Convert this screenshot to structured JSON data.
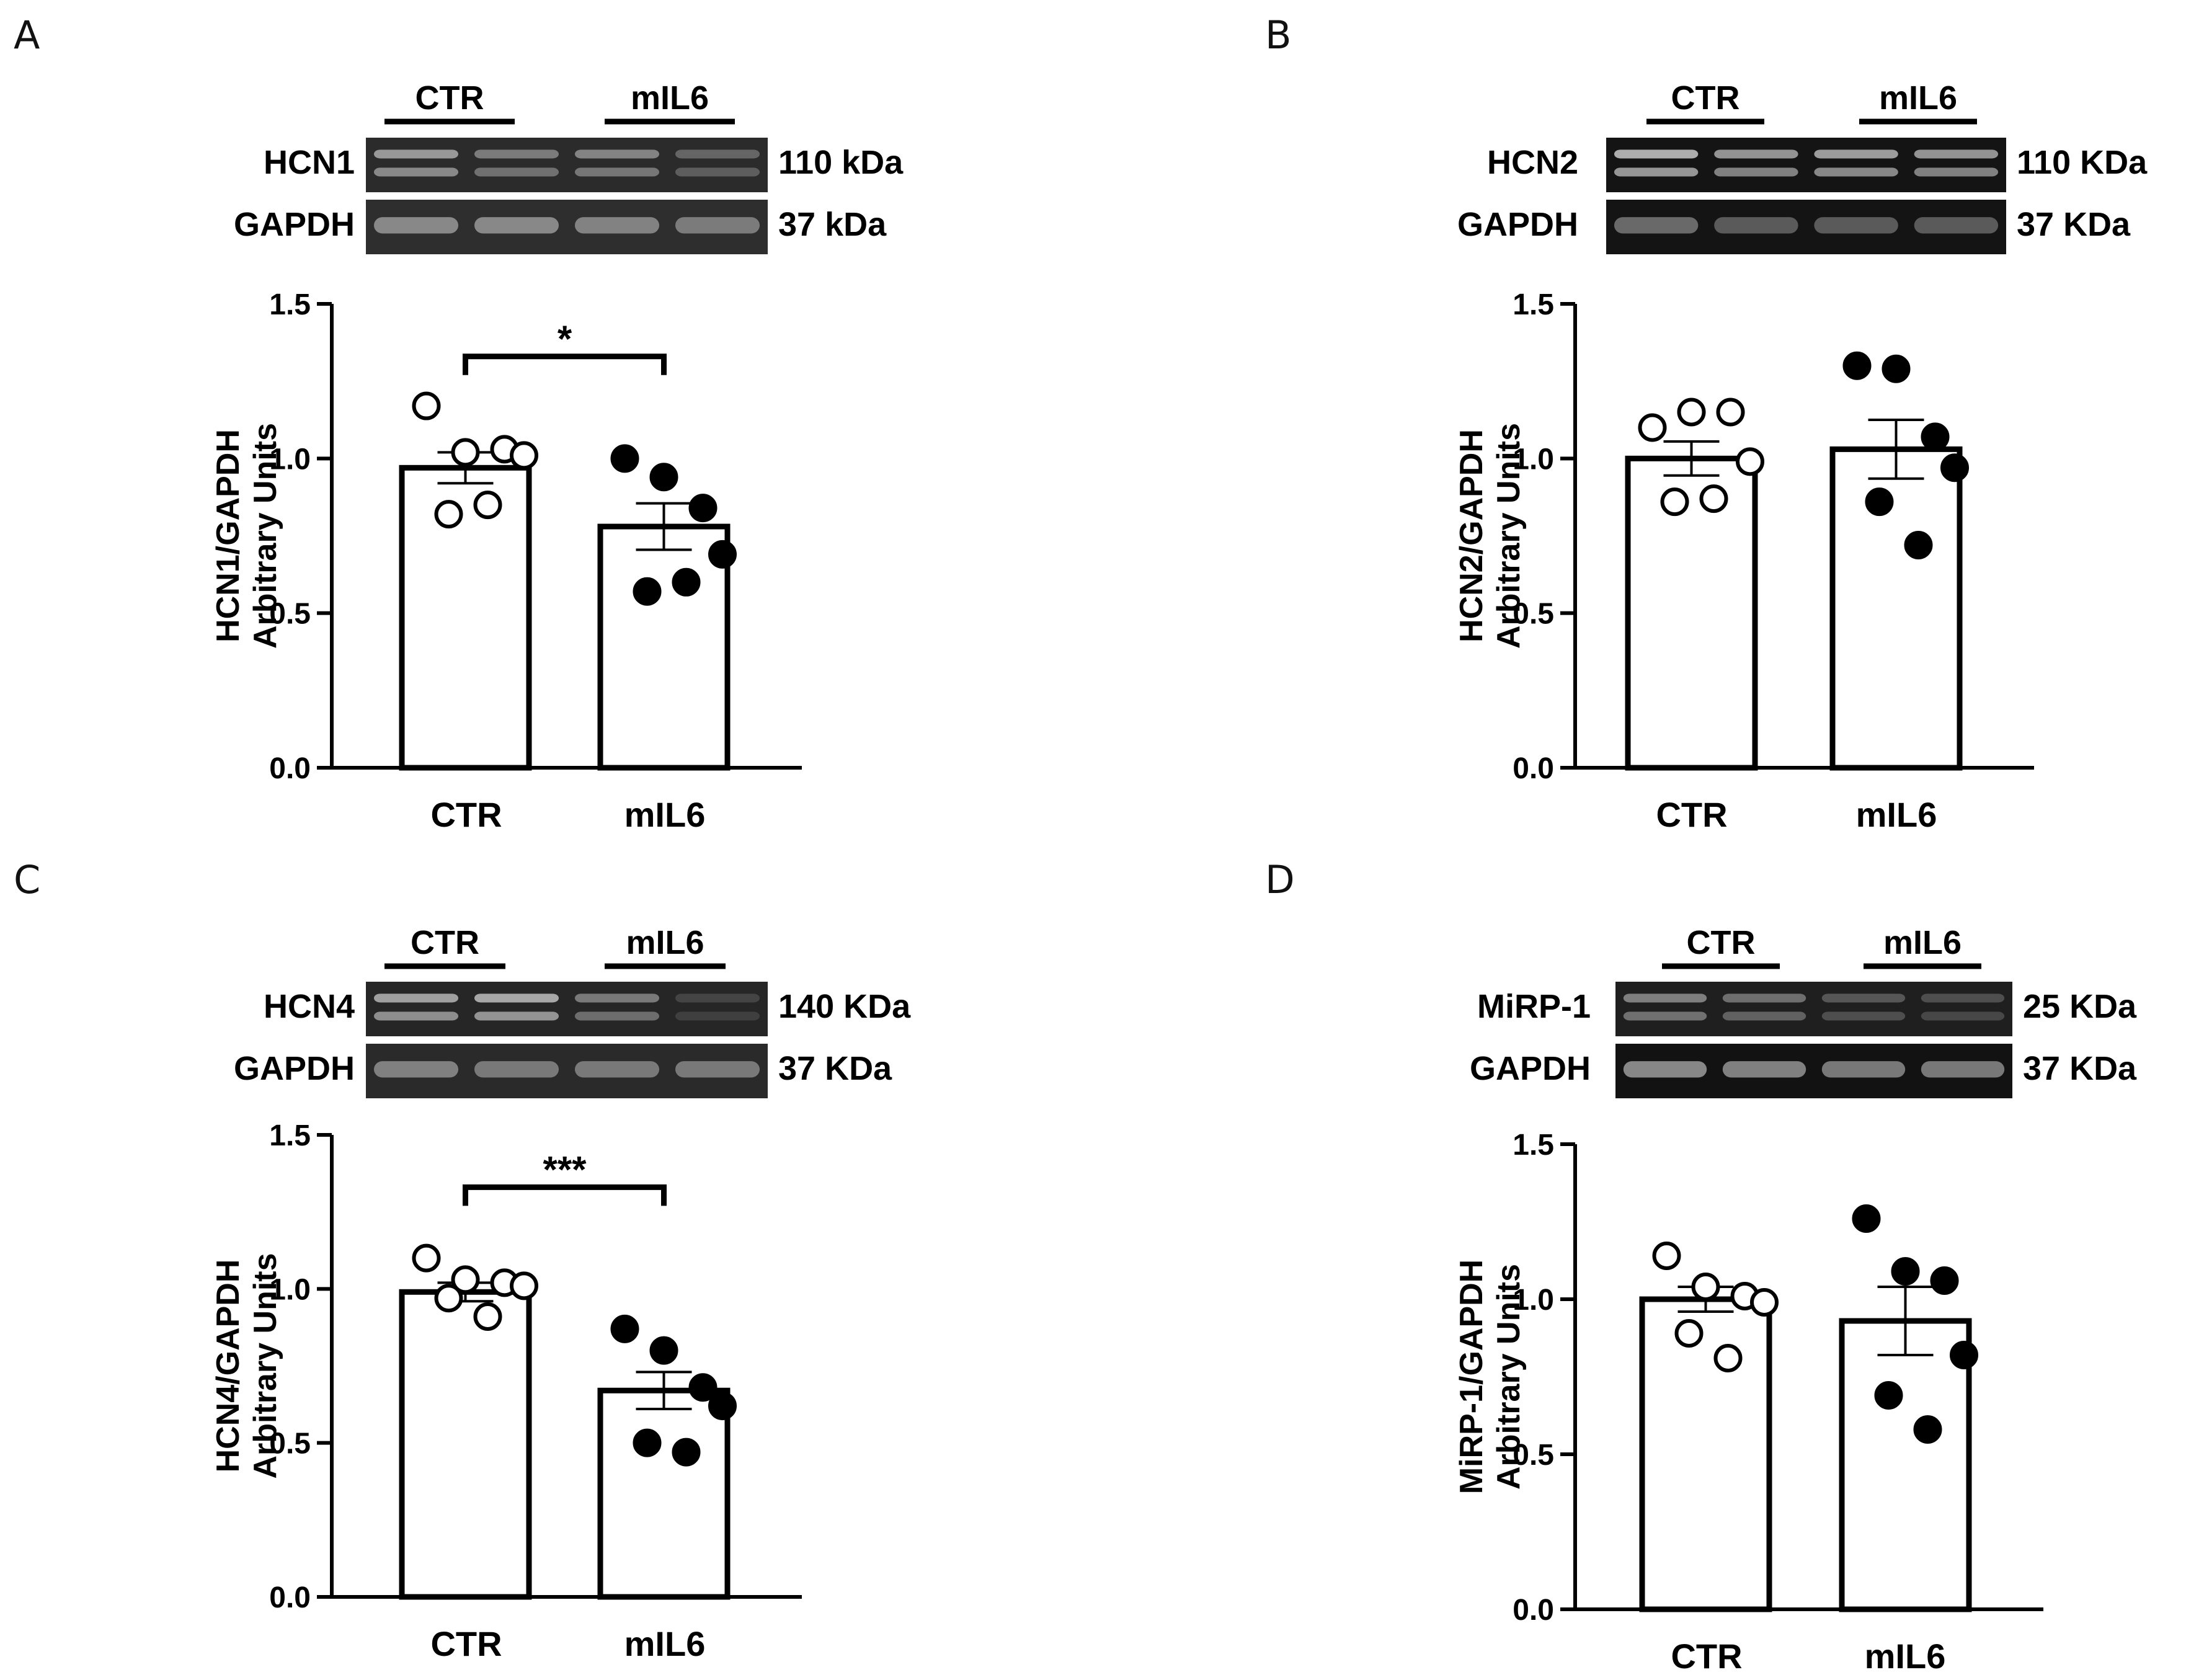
{
  "chart_data": [
    {
      "panel": "A",
      "type": "bar",
      "blot": {
        "groups": [
          "CTR",
          "mIL6"
        ],
        "rows": [
          {
            "protein": "HCN1",
            "mw": "110 kDa"
          },
          {
            "protein": "GAPDH",
            "mw": "37 kDa"
          }
        ]
      },
      "ylabel": [
        "HCN1/GAPDH",
        "Arbitrary Units"
      ],
      "yticks": [
        "0.0",
        "0.5",
        "1.0",
        "1.5"
      ],
      "ylim": [
        0,
        1.5
      ],
      "categories": [
        "CTR",
        "mIL6"
      ],
      "values": [
        0.97,
        0.78
      ],
      "sem": [
        0.05,
        0.075
      ],
      "points": [
        [
          1.17,
          1.02,
          1.03,
          1.01,
          0.82,
          0.85
        ],
        [
          1.0,
          0.94,
          0.84,
          0.69,
          0.57,
          0.6
        ]
      ],
      "significance": "*"
    },
    {
      "panel": "B",
      "type": "bar",
      "blot": {
        "groups": [
          "CTR",
          "mIL6"
        ],
        "rows": [
          {
            "protein": "HCN2",
            "mw": "110 KDa"
          },
          {
            "protein": "GAPDH",
            "mw": "37 KDa"
          }
        ]
      },
      "ylabel": [
        "HCN2/GAPDH",
        "Arbitrary Units"
      ],
      "yticks": [
        "0.0",
        "0.5",
        "1.0",
        "1.5"
      ],
      "ylim": [
        0,
        1.5
      ],
      "categories": [
        "CTR",
        "mIL6"
      ],
      "values": [
        1.0,
        1.03
      ],
      "sem": [
        0.055,
        0.095
      ],
      "points": [
        [
          1.1,
          1.15,
          1.15,
          0.99,
          0.86,
          0.87
        ],
        [
          1.3,
          1.29,
          1.07,
          0.97,
          0.86,
          0.72
        ]
      ],
      "significance": ""
    },
    {
      "panel": "C",
      "type": "bar",
      "blot": {
        "groups": [
          "CTR",
          "mIL6"
        ],
        "rows": [
          {
            "protein": "HCN4",
            "mw": "140 KDa"
          },
          {
            "protein": "GAPDH",
            "mw": "37 KDa"
          }
        ]
      },
      "ylabel": [
        "HCN4/GAPDH",
        "Arbitrary Units"
      ],
      "yticks": [
        "0.0",
        "0.5",
        "1.0",
        "1.5"
      ],
      "ylim": [
        0,
        1.5
      ],
      "categories": [
        "CTR",
        "mIL6"
      ],
      "values": [
        0.99,
        0.67
      ],
      "sem": [
        0.03,
        0.06
      ],
      "points": [
        [
          1.1,
          1.03,
          1.02,
          1.01,
          0.97,
          0.91
        ],
        [
          0.87,
          0.8,
          0.68,
          0.62,
          0.5,
          0.47
        ]
      ],
      "significance": "***"
    },
    {
      "panel": "D",
      "type": "bar",
      "blot": {
        "groups": [
          "CTR",
          "mIL6"
        ],
        "rows": [
          {
            "protein": "MiRP-1",
            "mw": "25 KDa"
          },
          {
            "protein": "GAPDH",
            "mw": "37 KDa"
          }
        ]
      },
      "ylabel": [
        "MiRP-1/GAPDH",
        "Arbitrary Units"
      ],
      "yticks": [
        "0.0",
        "0.5",
        "1.0",
        "1.5"
      ],
      "ylim": [
        0,
        1.5
      ],
      "categories": [
        "CTR",
        "mIL6"
      ],
      "values": [
        1.0,
        0.93
      ],
      "sem": [
        0.04,
        0.11
      ],
      "points": [
        [
          1.14,
          1.04,
          1.01,
          0.99,
          0.89,
          0.81
        ],
        [
          1.26,
          1.09,
          1.06,
          0.82,
          0.69,
          0.58
        ]
      ],
      "significance": ""
    }
  ],
  "colors": {
    "axis": "#000000",
    "bar_fill": "#ffffff",
    "ctr_points": "#ffffff",
    "mil6_points": "#000000",
    "blot_bg_dark": "#1c1c1c"
  }
}
